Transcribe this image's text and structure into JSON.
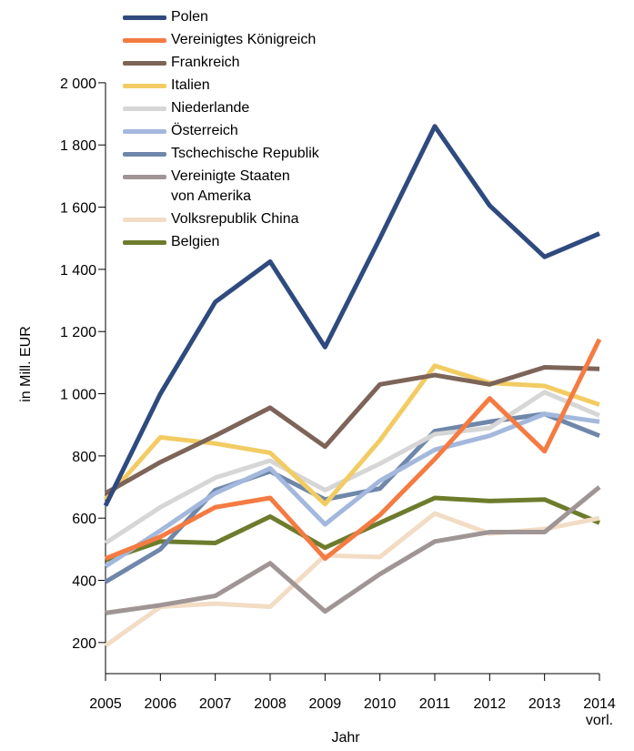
{
  "chart_data": {
    "type": "line",
    "x_label": "Jahr",
    "y_label": "in Mill. EUR",
    "categories": [
      "2005",
      "2006",
      "2007",
      "2008",
      "2009",
      "2010",
      "2011",
      "2012",
      "2013",
      "2014\nvorl."
    ],
    "ylim": [
      100,
      2000
    ],
    "yticks": [
      200,
      400,
      600,
      800,
      {
        "value": 1000,
        "label": "1 000"
      },
      {
        "value": 1200,
        "label": "1 200"
      },
      {
        "value": 1400,
        "label": "1 400"
      },
      {
        "value": 1600,
        "label": "1 600"
      },
      {
        "value": 1800,
        "label": "1 800"
      },
      {
        "value": 2000,
        "label": "2 000"
      }
    ],
    "legend": "top-left",
    "series": [
      {
        "name": "Polen",
        "color": "#2e4a7f",
        "values": [
          640,
          1000,
          1295,
          1425,
          1150,
          1500,
          1860,
          1605,
          1440,
          1515
        ]
      },
      {
        "name": "Vereinigtes Königreich",
        "color": "#f47b42",
        "values": [
          470,
          540,
          635,
          665,
          470,
          610,
          790,
          985,
          815,
          1175
        ]
      },
      {
        "name": "Frankreich",
        "color": "#7d6459",
        "values": [
          680,
          780,
          865,
          955,
          830,
          1030,
          1060,
          1030,
          1085,
          1080
        ]
      },
      {
        "name": "Italien",
        "color": "#f2cc63",
        "values": [
          660,
          860,
          840,
          810,
          645,
          850,
          1090,
          1035,
          1025,
          965
        ]
      },
      {
        "name": "Niederlande",
        "color": "#d6d6d6",
        "values": [
          520,
          635,
          730,
          785,
          690,
          775,
          870,
          890,
          1005,
          930
        ]
      },
      {
        "name": "Österreich",
        "color": "#a3b8dc",
        "values": [
          445,
          560,
          680,
          760,
          580,
          720,
          820,
          865,
          935,
          910
        ]
      },
      {
        "name": "Tschechische Republik",
        "color": "#6e87aa",
        "values": [
          395,
          500,
          690,
          750,
          660,
          695,
          880,
          910,
          935,
          865
        ]
      },
      {
        "name": "Vereinigte Staaten\nvon Amerika",
        "color": "#a09595",
        "values": [
          295,
          320,
          350,
          455,
          300,
          420,
          525,
          555,
          555,
          700
        ]
      },
      {
        "name": "Volksrepublik China",
        "color": "#f2dcc4",
        "values": [
          190,
          315,
          325,
          315,
          480,
          475,
          615,
          550,
          565,
          600
        ]
      },
      {
        "name": "Belgien",
        "color": "#6d7c2c",
        "values": [
          465,
          525,
          520,
          605,
          505,
          585,
          665,
          655,
          660,
          585
        ]
      }
    ]
  }
}
